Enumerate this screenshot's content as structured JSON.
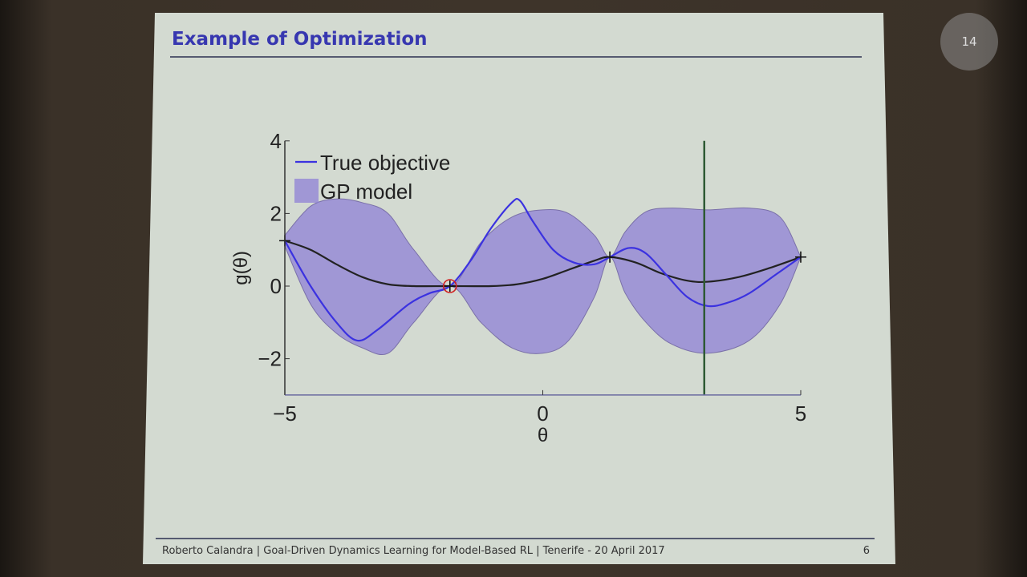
{
  "slide": {
    "title": "Example of Optimization",
    "footer": "Roberto Calandra | Goal-Driven Dynamics Learning for Model-Based RL | Tenerife - 20 April 2017",
    "page": "6"
  },
  "overlay": {
    "counter": "14"
  },
  "chart_data": {
    "type": "line",
    "title": "",
    "xlabel": "θ",
    "ylabel": "g(θ)",
    "xlim": [
      -5,
      5
    ],
    "ylim": [
      -3,
      4
    ],
    "xticks": [
      -5,
      0,
      5
    ],
    "yticks": [
      -2,
      0,
      2,
      4
    ],
    "legend": {
      "position": "top-left",
      "entries": [
        "True objective",
        "GP model"
      ]
    },
    "colors": {
      "true": "#3b32e0",
      "mean": "#222222",
      "band": "#8f80d6",
      "vline": "#2e5a34",
      "best": "#d02020"
    },
    "true_objective": {
      "name": "True objective",
      "x": [
        -5,
        -4.5,
        -4,
        -3.6,
        -3.2,
        -2.6,
        -2.2,
        -1.8,
        -1.4,
        -1,
        -0.6,
        -0.44,
        -0.2,
        0.2,
        0.6,
        1.0,
        1.3,
        1.67,
        2.0,
        2.4,
        2.8,
        3.2,
        3.6,
        4.0,
        4.5,
        5
      ],
      "y": [
        1.25,
        0,
        -1.0,
        -1.5,
        -1.2,
        -0.5,
        -0.2,
        0,
        0.7,
        1.6,
        2.3,
        2.35,
        1.8,
        1.0,
        0.65,
        0.6,
        0.8,
        1.05,
        0.9,
        0.3,
        -0.3,
        -0.55,
        -0.45,
        -0.2,
        0.3,
        0.8
      ]
    },
    "gp_mean": {
      "x": [
        -5,
        -4.5,
        -4,
        -3.5,
        -3,
        -2.5,
        -1.8,
        -1,
        -0.5,
        0,
        0.5,
        1.0,
        1.3,
        1.8,
        2.3,
        2.8,
        3.2,
        3.8,
        4.4,
        5
      ],
      "y": [
        1.25,
        1.0,
        0.6,
        0.25,
        0.05,
        0,
        0,
        0,
        0.05,
        0.2,
        0.45,
        0.7,
        0.8,
        0.65,
        0.35,
        0.15,
        0.12,
        0.25,
        0.5,
        0.8
      ]
    },
    "gp_band": {
      "name": "GP model",
      "x": [
        -5,
        -4.5,
        -4,
        -3.5,
        -3,
        -2.5,
        -1.8,
        -1.2,
        -0.6,
        0,
        0.5,
        1.0,
        1.3,
        1.6,
        2.0,
        2.5,
        3.2,
        4,
        4.6,
        5
      ],
      "upper": [
        1.4,
        2.2,
        2.4,
        2.3,
        2.0,
        1.0,
        0,
        1.2,
        1.9,
        2.1,
        2.0,
        1.4,
        0.8,
        1.5,
        2.05,
        2.15,
        2.1,
        2.15,
        1.9,
        0.8
      ],
      "lower": [
        1.1,
        -0.5,
        -1.3,
        -1.7,
        -1.85,
        -1.0,
        0,
        -1.0,
        -1.7,
        -1.85,
        -1.5,
        -0.3,
        0.8,
        -0.2,
        -1.0,
        -1.6,
        -1.85,
        -1.5,
        -0.5,
        0.8
      ]
    },
    "observations": {
      "x": [
        -5,
        -1.8,
        1.3,
        5
      ],
      "y": [
        1.25,
        0,
        0.8,
        0.8
      ]
    },
    "best_point": {
      "x": -1.8,
      "y": 0
    },
    "next_query_x": 3.13
  }
}
